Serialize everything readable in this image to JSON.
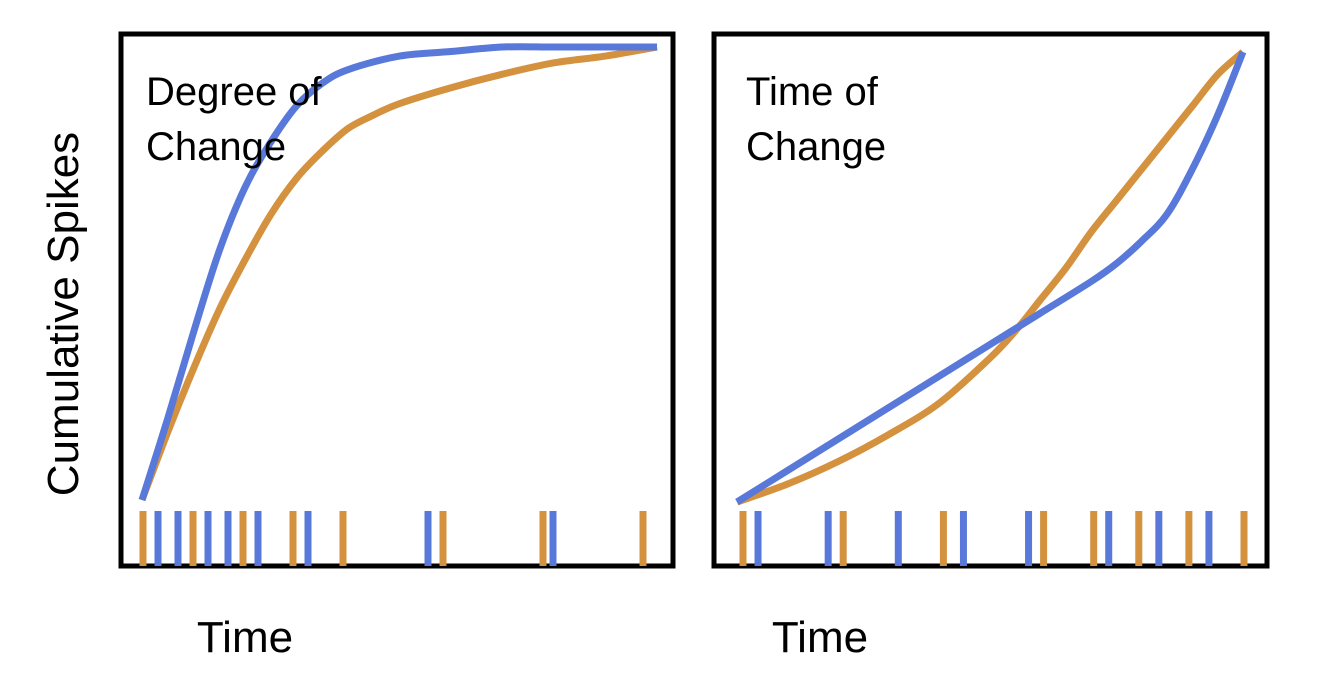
{
  "ylabel": "Cumulative Spikes",
  "colors": {
    "blue": "#5878DA",
    "orange": "#D4913E",
    "frame": "#000000"
  },
  "chart_data": [
    {
      "type": "line",
      "title_lines": [
        "Degree of",
        "Change"
      ],
      "xlabel": "Time",
      "ylabel": "Cumulative Spikes",
      "xlim": [
        0,
        1
      ],
      "ylim": [
        0,
        1
      ],
      "grid": false,
      "series": [
        {
          "color": "#5878DA",
          "x": [
            0.0,
            0.05,
            0.1,
            0.15,
            0.2,
            0.25,
            0.3,
            0.35,
            0.4,
            0.5,
            0.6,
            0.7,
            0.8,
            0.9,
            1.0
          ],
          "y": [
            0.0,
            0.18,
            0.37,
            0.55,
            0.69,
            0.79,
            0.87,
            0.92,
            0.95,
            0.98,
            0.99,
            1.0,
            1.0,
            1.0,
            1.0
          ],
          "spikes": [
            0.03,
            0.07,
            0.13,
            0.17,
            0.23,
            0.33,
            0.57,
            0.82
          ]
        },
        {
          "color": "#D4913E",
          "x": [
            0.0,
            0.05,
            0.1,
            0.15,
            0.2,
            0.25,
            0.3,
            0.35,
            0.4,
            0.45,
            0.5,
            0.6,
            0.7,
            0.8,
            0.9,
            1.0
          ],
          "y": [
            0.0,
            0.15,
            0.29,
            0.42,
            0.53,
            0.63,
            0.71,
            0.77,
            0.82,
            0.85,
            0.875,
            0.91,
            0.94,
            0.965,
            0.98,
            1.0
          ],
          "spikes": [
            0.0,
            0.1,
            0.2,
            0.3,
            0.4,
            0.6,
            0.8,
            1.0
          ]
        }
      ]
    },
    {
      "type": "line",
      "title_lines": [
        "Time of",
        "Change"
      ],
      "xlabel": "Time",
      "ylabel": "",
      "xlim": [
        0,
        1
      ],
      "ylim": [
        0,
        1
      ],
      "grid": false,
      "series": [
        {
          "color": "#5878DA",
          "x": [
            0.0,
            0.1,
            0.2,
            0.3,
            0.4,
            0.5,
            0.6,
            0.7,
            0.75,
            0.8,
            0.85,
            0.9,
            0.95,
            1.0
          ],
          "y": [
            0.0,
            0.07,
            0.14,
            0.21,
            0.28,
            0.35,
            0.42,
            0.49,
            0.53,
            0.58,
            0.64,
            0.74,
            0.86,
            1.0
          ],
          "spikes": [
            0.03,
            0.17,
            0.31,
            0.44,
            0.57,
            0.73,
            0.83,
            0.93
          ]
        },
        {
          "color": "#D4913E",
          "x": [
            0.0,
            0.1,
            0.2,
            0.3,
            0.4,
            0.5,
            0.55,
            0.6,
            0.65,
            0.7,
            0.75,
            0.8,
            0.85,
            0.9,
            0.95,
            1.0
          ],
          "y": [
            0.0,
            0.04,
            0.09,
            0.15,
            0.22,
            0.32,
            0.38,
            0.45,
            0.52,
            0.6,
            0.67,
            0.74,
            0.81,
            0.88,
            0.95,
            1.0
          ],
          "spikes": [
            0.0,
            0.2,
            0.4,
            0.6,
            0.7,
            0.79,
            0.89,
            1.0
          ]
        }
      ]
    }
  ]
}
